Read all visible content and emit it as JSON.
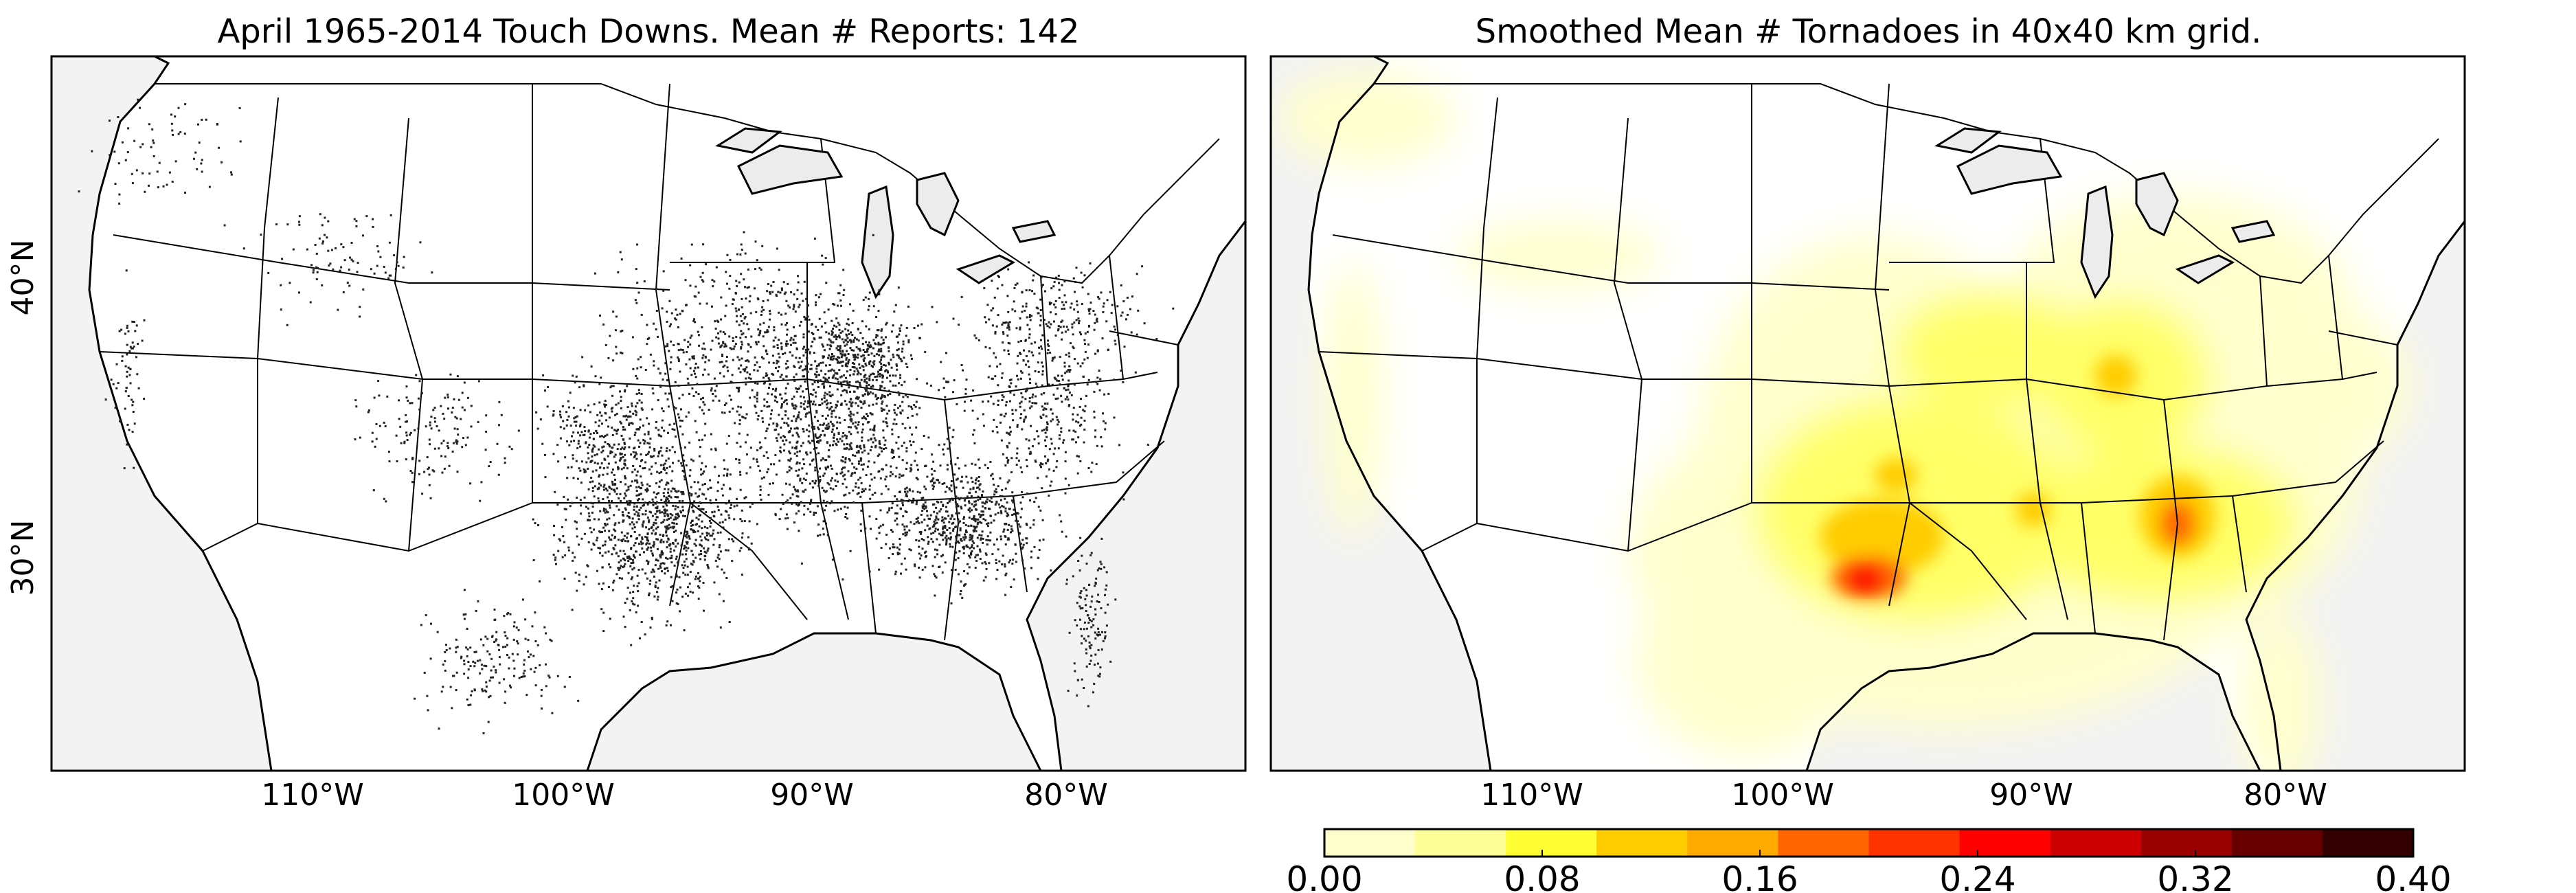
{
  "left_panel": {
    "title": "April 1965-2014 Touch Downs. Mean # Reports: 142",
    "lat_labels": [
      "40°N",
      "30°N"
    ],
    "lon_labels": [
      "110°W",
      "100°W",
      "90°W",
      "80°W"
    ]
  },
  "right_panel": {
    "title": "Smoothed Mean # Tornadoes in 40x40 km grid.",
    "lon_labels": [
      "110°W",
      "100°W",
      "90°W",
      "80°W"
    ]
  },
  "colorbar": {
    "tick_labels": [
      "0.00",
      "0.08",
      "0.16",
      "0.24",
      "0.32",
      "0.40"
    ],
    "ticks": [
      0.0,
      0.08,
      0.16,
      0.24,
      0.32,
      0.4
    ],
    "range": [
      0.0,
      0.4
    ],
    "colors": [
      "#ffffcc",
      "#ffff99",
      "#ffff33",
      "#ffcc00",
      "#ffaa00",
      "#ff6600",
      "#ff3300",
      "#ff0000",
      "#cc0000",
      "#990000",
      "#660000",
      "#330000"
    ]
  },
  "colors": {
    "background": "#f3f3f3",
    "land": "#ffffff",
    "lakes": "#ececec",
    "points": "#222222",
    "frame": "#000000"
  }
}
